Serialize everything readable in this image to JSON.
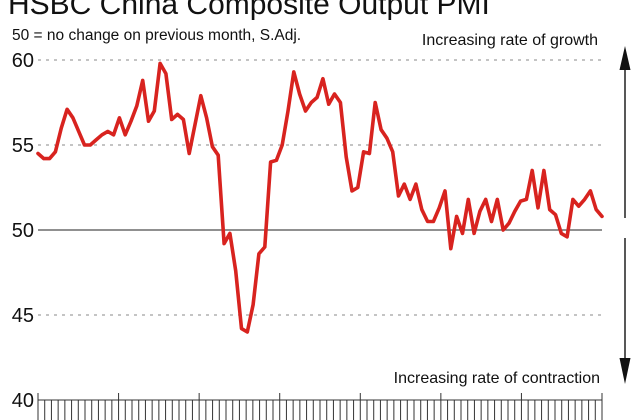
{
  "colors": {
    "series": "#d8231f",
    "text": "#111111",
    "grid": "#888888"
  },
  "chart_data": {
    "type": "line",
    "title": "HSBC China Composite Output PMI",
    "subtitle": "50 = no change on previous month, S.Adj.",
    "annotations": {
      "top": "Increasing rate of growth",
      "bottom": "Increasing rate of contraction"
    },
    "ylim": [
      40,
      61.5
    ],
    "yticks": [
      {
        "value": 60,
        "label": "60"
      },
      {
        "value": 55,
        "label": "55"
      },
      {
        "value": 50,
        "label": "50"
      },
      {
        "value": 45,
        "label": "45"
      },
      {
        "value": 40,
        "label": "40"
      }
    ],
    "reference_value": 50,
    "grid": "dashed horizontal at 45, 55, 60; solid at 50",
    "x_tick_count": 84,
    "series": [
      {
        "values": [
          54.5,
          54.2,
          54.2,
          54.6,
          56.0,
          57.1,
          56.6,
          55.8,
          55.0,
          55.0,
          55.3,
          55.6,
          55.8,
          55.6,
          56.6,
          55.6,
          56.4,
          57.3,
          58.8,
          56.4,
          57.0,
          59.8,
          59.2,
          56.5,
          56.8,
          56.5,
          54.5,
          56.2,
          57.9,
          56.6,
          54.9,
          54.4,
          49.2,
          49.8,
          47.6,
          44.2,
          44.0,
          45.6,
          48.6,
          49.0,
          54.0,
          54.1,
          55.0,
          57.0,
          59.3,
          58.0,
          57.0,
          57.5,
          57.8,
          58.9,
          57.4,
          58.0,
          57.5,
          54.3,
          52.3,
          52.5,
          54.6,
          54.5,
          57.5,
          55.9,
          55.4,
          54.6,
          52.0,
          52.7,
          51.8,
          52.7,
          51.2,
          50.5,
          50.5,
          51.3,
          52.3,
          48.9,
          50.8,
          49.8,
          51.8,
          49.8,
          51.1,
          51.8,
          50.5,
          51.8,
          50.0,
          50.4,
          51.1,
          51.7,
          51.8,
          53.5,
          51.3,
          53.5,
          51.2,
          50.9,
          49.8,
          49.6,
          51.8,
          51.4,
          51.8,
          52.3,
          51.2,
          50.8
        ]
      }
    ]
  }
}
